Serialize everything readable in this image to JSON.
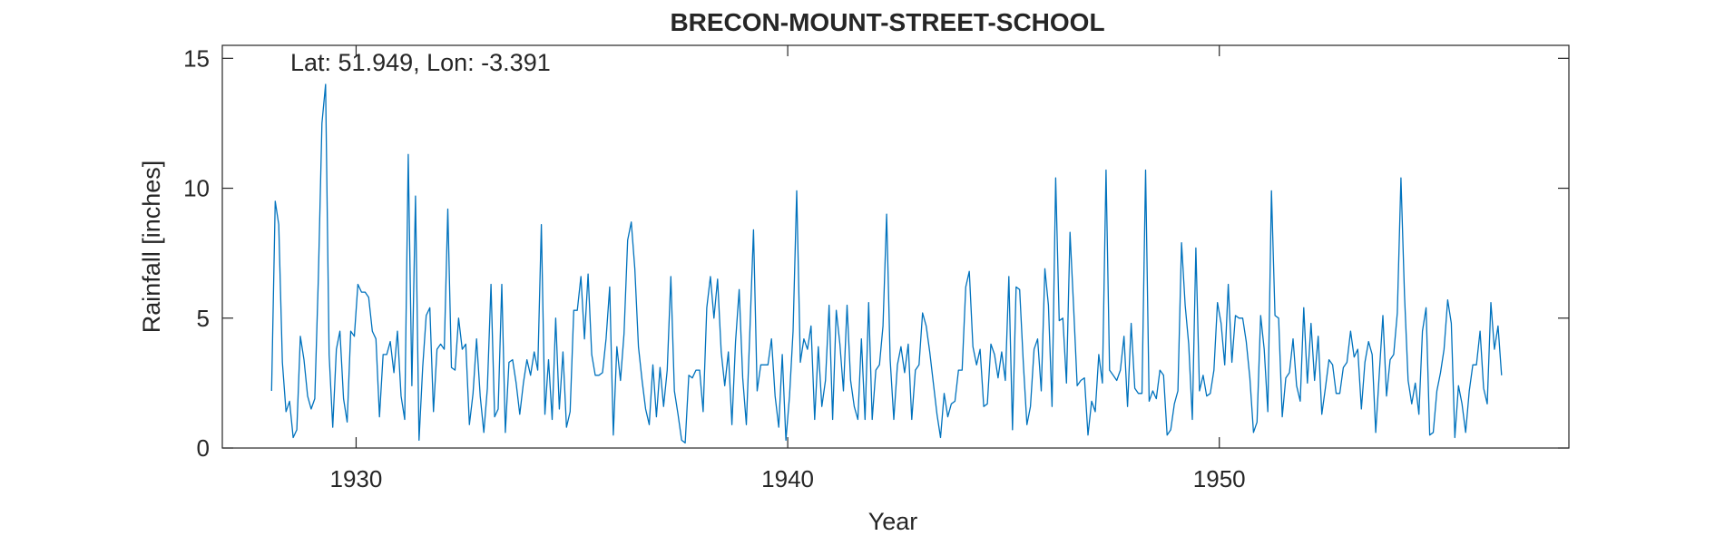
{
  "chart_data": {
    "type": "line",
    "title": "BRECON-MOUNT-STREET-SCHOOL",
    "xlabel": "Year",
    "ylabel": "Rainfall [inches]",
    "annotation": "Lat: 51.949, Lon: -3.391",
    "xlim": [
      1926.9,
      1958.1
    ],
    "ylim": [
      0,
      15.5
    ],
    "xticks": [
      1930,
      1940,
      1950
    ],
    "yticks": [
      0,
      5,
      10,
      15
    ],
    "grid": false,
    "line_color": "#0072BD",
    "x_start": 1928.042,
    "x_step": 0.08333,
    "series": [
      {
        "name": "",
        "values": [
          2.2,
          9.5,
          8.6,
          3.3,
          1.4,
          1.8,
          0.4,
          0.7,
          4.3,
          3.4,
          2.0,
          1.5,
          1.9,
          6.5,
          12.5,
          14.0,
          3.6,
          0.8,
          3.8,
          4.5,
          1.9,
          1.0,
          4.5,
          4.3,
          6.3,
          6.0,
          6.0,
          5.8,
          4.5,
          4.2,
          1.2,
          3.6,
          3.6,
          4.1,
          2.9,
          4.5,
          2.0,
          1.1,
          11.3,
          2.4,
          9.7,
          0.3,
          3.1,
          5.1,
          5.4,
          1.4,
          3.8,
          4.0,
          3.8,
          9.2,
          3.1,
          3.0,
          5.0,
          3.8,
          4.0,
          0.9,
          2.1,
          4.2,
          2.0,
          0.6,
          2.3,
          6.3,
          1.2,
          1.5,
          6.3,
          0.6,
          3.3,
          3.4,
          2.5,
          1.3,
          2.5,
          3.4,
          2.8,
          3.7,
          3.0,
          8.6,
          1.3,
          3.4,
          1.1,
          5.0,
          1.5,
          3.7,
          0.8,
          1.4,
          5.3,
          5.3,
          6.6,
          4.2,
          6.7,
          3.6,
          2.8,
          2.8,
          2.9,
          4.2,
          6.2,
          0.5,
          3.9,
          2.6,
          4.4,
          8.0,
          8.7,
          6.9,
          3.9,
          2.6,
          1.5,
          0.9,
          3.2,
          1.2,
          3.1,
          1.6,
          3.0,
          6.6,
          2.2,
          1.3,
          0.3,
          0.2,
          2.8,
          2.7,
          3.0,
          3.0,
          1.4,
          5.4,
          6.6,
          5.0,
          6.5,
          3.7,
          2.4,
          3.7,
          0.9,
          4.1,
          6.1,
          2.7,
          0.9,
          4.6,
          8.4,
          2.2,
          3.2,
          3.2,
          3.2,
          4.2,
          2.0,
          0.8,
          3.6,
          0.3,
          2.0,
          4.5,
          9.9,
          3.3,
          4.2,
          3.8,
          4.7,
          1.1,
          3.9,
          1.6,
          2.6,
          5.5,
          1.1,
          5.3,
          4.0,
          2.2,
          5.5,
          2.6,
          1.6,
          1.1,
          4.2,
          1.1,
          5.6,
          1.1,
          3.0,
          3.2,
          4.7,
          9.0,
          3.4,
          1.1,
          3.2,
          3.9,
          2.9,
          4.0,
          1.1,
          3.0,
          3.2,
          5.2,
          4.7,
          3.7,
          2.5,
          1.3,
          0.4,
          2.1,
          1.2,
          1.7,
          1.8,
          3.0,
          3.0,
          6.2,
          6.8,
          3.9,
          3.2,
          3.8,
          1.6,
          1.7,
          4.0,
          3.6,
          2.7,
          3.7,
          2.6,
          6.6,
          0.7,
          6.2,
          6.1,
          3.3,
          0.9,
          1.6,
          3.8,
          4.2,
          2.2,
          6.9,
          5.5,
          1.6,
          10.4,
          4.9,
          5.0,
          2.5,
          8.3,
          5.4,
          2.4,
          2.6,
          2.7,
          0.5,
          1.8,
          1.4,
          3.6,
          2.5,
          10.7,
          3.0,
          2.8,
          2.6,
          3.0,
          4.3,
          1.6,
          4.8,
          2.3,
          2.1,
          2.1,
          10.7,
          1.8,
          2.2,
          1.9,
          3.0,
          2.8,
          0.5,
          0.7,
          1.7,
          2.2,
          7.9,
          5.5,
          4.0,
          1.1,
          7.7,
          2.2,
          2.8,
          2.0,
          2.1,
          3.0,
          5.6,
          4.8,
          3.2,
          6.3,
          3.3,
          5.1,
          5.0,
          5.0,
          4.1,
          2.7,
          0.6,
          1.0,
          5.1,
          3.8,
          1.4,
          9.9,
          5.1,
          5.0,
          1.2,
          2.7,
          2.9,
          4.2,
          2.4,
          1.8,
          5.4,
          2.5,
          4.8,
          2.6,
          4.3,
          1.3,
          2.3,
          3.4,
          3.2,
          2.1,
          2.1,
          3.1,
          3.3,
          4.5,
          3.5,
          3.8,
          1.5,
          3.3,
          4.1,
          3.6,
          0.6,
          2.9,
          5.1,
          2.0,
          3.4,
          3.6,
          5.2,
          10.4,
          5.9,
          2.6,
          1.7,
          2.5,
          1.3,
          4.5,
          5.4,
          0.5,
          0.6,
          2.2,
          2.9,
          3.8,
          5.7,
          4.8,
          0.4,
          2.4,
          1.7,
          0.6,
          2.2,
          3.2,
          3.2,
          4.5,
          2.3,
          1.7,
          5.6,
          3.8,
          4.7,
          2.8
        ]
      }
    ]
  }
}
